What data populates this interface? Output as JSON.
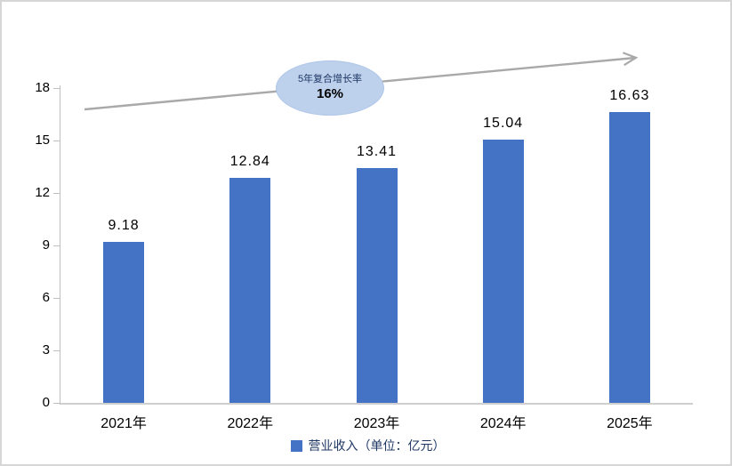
{
  "chart_data": {
    "type": "bar",
    "title": "",
    "categories": [
      "2021年",
      "2022年",
      "2023年",
      "2024年",
      "2025年"
    ],
    "series": [
      {
        "name": "营业收入（单位：亿元）",
        "values": [
          9.18,
          12.84,
          13.41,
          15.04,
          16.63
        ]
      }
    ],
    "value_labels": [
      "9.18",
      "12.84",
      "13.41",
      "15.04",
      "16.63"
    ],
    "xlabel": "",
    "ylabel": "",
    "ylim": [
      0,
      18
    ],
    "yticks": [
      0,
      3,
      6,
      9,
      12,
      15,
      18
    ],
    "grid": false,
    "legend_position": "bottom",
    "bar_color": "#4472c4"
  },
  "annotation": {
    "label": "5年复合增长率",
    "value": "16%",
    "ellipse_fill": "#bdd0ec",
    "arrow_color": "#a9a9a9"
  },
  "legend": {
    "label": "营业收入（单位：亿元）",
    "marker_color": "#4472c4"
  },
  "colors": {
    "axis_line": "#bfbfbf",
    "background": "#ffffff",
    "border": "#d6d6d6",
    "text": "#000000",
    "legend_text": "#1f3864"
  }
}
